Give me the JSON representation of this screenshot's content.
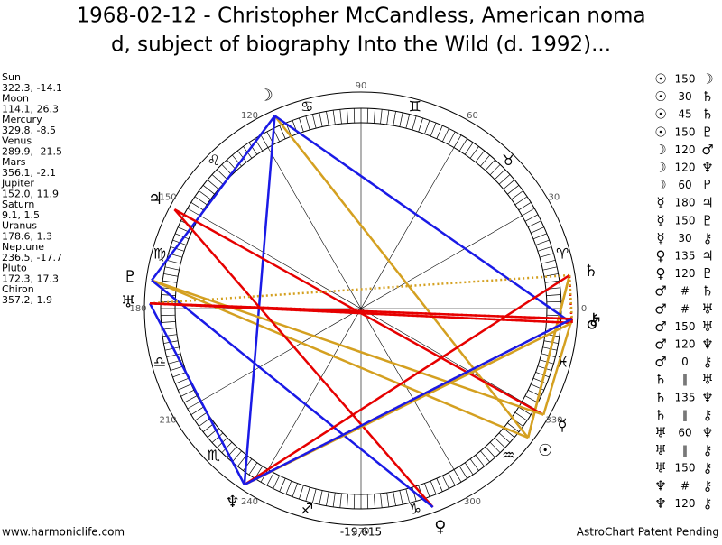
{
  "title_lines": [
    "1968-02-12 - Christopher McCandless, American noma",
    "d, subject of biography Into the Wild (d. 1992)..."
  ],
  "planets": [
    {
      "name": "Sun",
      "position": "322.3, -14.1",
      "symbol": "☉"
    },
    {
      "name": "Moon",
      "position": "114.1, 26.3",
      "symbol": "☽"
    },
    {
      "name": "Mercury",
      "position": "329.8, -8.5",
      "symbol": "☿"
    },
    {
      "name": "Venus",
      "position": "289.9, -21.5",
      "symbol": "♀"
    },
    {
      "name": "Mars",
      "position": "356.1, -2.1",
      "symbol": "♂"
    },
    {
      "name": "Jupiter",
      "position": "152.0, 11.9",
      "symbol": "♃"
    },
    {
      "name": "Saturn",
      "position": "9.1, 1.5",
      "symbol": "♄"
    },
    {
      "name": "Uranus",
      "position": "178.6, 1.3",
      "symbol": "♅"
    },
    {
      "name": "Neptune",
      "position": "236.5, -17.7",
      "symbol": "♆"
    },
    {
      "name": "Pluto",
      "position": "172.3, 17.3",
      "symbol": "♇"
    },
    {
      "name": "Chiron",
      "position": "357.2, 1.9",
      "symbol": "⚷"
    }
  ],
  "aspects": [
    {
      "from": "☉",
      "angle": "150",
      "to": "☽",
      "color": "#d4a020"
    },
    {
      "from": "☉",
      "angle": "30",
      "to": "♄",
      "color": "#d4a020"
    },
    {
      "from": "☉",
      "angle": "45",
      "to": "♄",
      "color": "#d4a020"
    },
    {
      "from": "☉",
      "angle": "150",
      "to": "♇",
      "color": "#d4a020"
    },
    {
      "from": "☽",
      "angle": "120",
      "to": "♂",
      "color": "#1a1ae6"
    },
    {
      "from": "☽",
      "angle": "120",
      "to": "♆",
      "color": "#1a1ae6"
    },
    {
      "from": "☽",
      "angle": "60",
      "to": "♇",
      "color": "#1a1ae6"
    },
    {
      "from": "☿",
      "angle": "180",
      "to": "♃",
      "color": "#e60000"
    },
    {
      "from": "☿",
      "angle": "150",
      "to": "♇",
      "color": "#d4a020"
    },
    {
      "from": "☿",
      "angle": "30",
      "to": "⚷",
      "color": "#d4a020"
    },
    {
      "from": "♀",
      "angle": "135",
      "to": "♃",
      "color": "#e60000"
    },
    {
      "from": "♀",
      "angle": "120",
      "to": "♇",
      "color": "#1a1ae6"
    },
    {
      "from": "♂",
      "angle": "#",
      "to": "♄",
      "color": "#e60000",
      "style": "dotted"
    },
    {
      "from": "♂",
      "angle": "#",
      "to": "♅",
      "color": "#e60000",
      "style": "dotted"
    },
    {
      "from": "♂",
      "angle": "150",
      "to": "♅",
      "color": "#e60000"
    },
    {
      "from": "♂",
      "angle": "120",
      "to": "♆",
      "color": "#d4a020"
    },
    {
      "from": "♂",
      "angle": "0",
      "to": "⚷",
      "color": "#e60000"
    },
    {
      "from": "♄",
      "angle": "‖",
      "to": "♅",
      "color": "#d4a020",
      "style": "dotted"
    },
    {
      "from": "♄",
      "angle": "135",
      "to": "♆",
      "color": "#e60000"
    },
    {
      "from": "♄",
      "angle": "‖",
      "to": "⚷",
      "color": "#d4a020",
      "style": "dotted"
    },
    {
      "from": "♅",
      "angle": "60",
      "to": "♆",
      "color": "#1a1ae6"
    },
    {
      "from": "♅",
      "angle": "‖",
      "to": "⚷",
      "color": "#e60000",
      "style": "dotted"
    },
    {
      "from": "♅",
      "angle": "150",
      "to": "⚷",
      "color": "#e60000"
    },
    {
      "from": "♆",
      "angle": "#",
      "to": "⚷",
      "color": "#e60000",
      "style": "dotted"
    },
    {
      "from": "♆",
      "angle": "120",
      "to": "⚷",
      "color": "#1a1ae6"
    }
  ],
  "signs": [
    "♈",
    "♉",
    "♊",
    "♋",
    "♌",
    "♍",
    "♎",
    "♏",
    "♐",
    "♑",
    "♒",
    "♓"
  ],
  "degree_labels": [
    0,
    30,
    60,
    90,
    120,
    150,
    180,
    210,
    240,
    270,
    300,
    330
  ],
  "footer": {
    "left": "www.harmoniclife.com",
    "center": "-19,615",
    "right": "AstroChart Patent Pending"
  }
}
